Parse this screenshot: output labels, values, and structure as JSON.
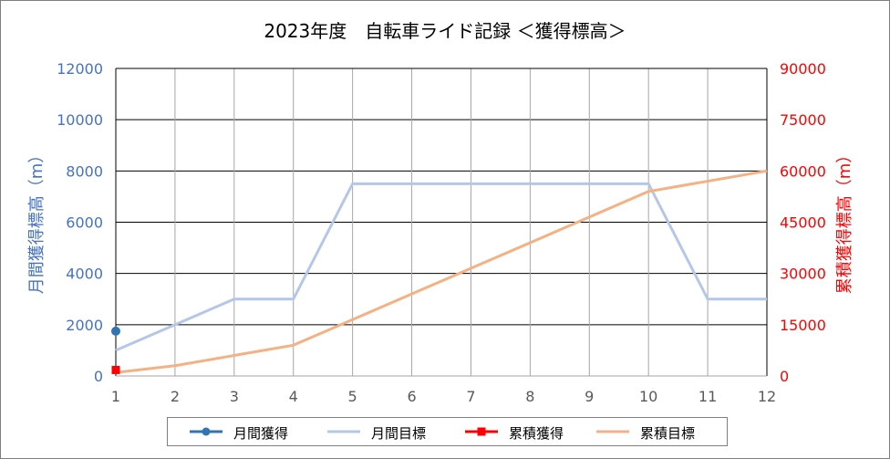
{
  "chart_data": {
    "type": "line",
    "title": "2023年度　自転車ライド記録 ＜獲得標高＞",
    "x": [
      1,
      2,
      3,
      4,
      5,
      6,
      7,
      8,
      9,
      10,
      11,
      12
    ],
    "xlim": [
      1,
      12
    ],
    "ylabel_left": "月間獲得標高（m）",
    "ylabel_right": "累積獲得標高（m）",
    "ylim_left": [
      0,
      12000
    ],
    "ylim_right": [
      0,
      90000
    ],
    "yticks_left": [
      0,
      2000,
      4000,
      6000,
      8000,
      10000,
      12000
    ],
    "yticks_right": [
      0,
      15000,
      30000,
      45000,
      60000,
      75000,
      90000
    ],
    "grid": true,
    "legend_position": "bottom",
    "series": [
      {
        "name": "月間獲得",
        "axis": "left",
        "color": "#2e75b6",
        "marker": "circle",
        "x": [
          1
        ],
        "values": [
          1750
        ]
      },
      {
        "name": "月間目標",
        "axis": "left",
        "color": "#b4c7e7",
        "marker": "none",
        "x": [
          1,
          2,
          3,
          4,
          5,
          6,
          7,
          8,
          9,
          10,
          11,
          12
        ],
        "values": [
          1000,
          2000,
          3000,
          3000,
          7500,
          7500,
          7500,
          7500,
          7500,
          7500,
          3000,
          3000
        ]
      },
      {
        "name": "累積獲得",
        "axis": "right",
        "color": "#ff0000",
        "marker": "square",
        "x": [
          1
        ],
        "values": [
          1750
        ]
      },
      {
        "name": "累積目標",
        "axis": "right",
        "color": "#f4b183",
        "marker": "none",
        "x": [
          1,
          2,
          3,
          4,
          5,
          6,
          7,
          8,
          9,
          10,
          11,
          12
        ],
        "values": [
          1000,
          3000,
          6000,
          9000,
          16500,
          24000,
          31500,
          39000,
          46500,
          54000,
          57000,
          60000
        ]
      }
    ],
    "colors": {
      "left_axis": "#4472c4",
      "right_axis": "#ff0000",
      "grid": "#a6a6a6"
    }
  }
}
